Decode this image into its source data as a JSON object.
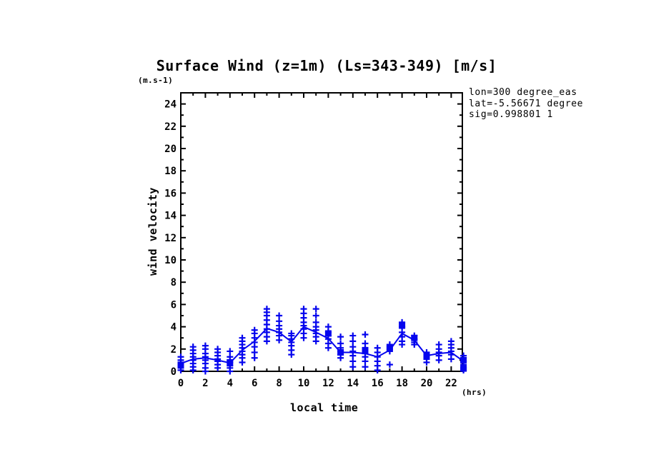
{
  "chart_data": {
    "type": "scatter",
    "title": "Surface Wind (z=1m) (Ls=343-349) [m/s]",
    "y_units": "(m.s-1)",
    "x_units": "(hrs)",
    "xlabel": "local time",
    "ylabel": "wind velocity",
    "annotations": [
      "lon=300 degree_eas",
      "lat=-5.56671 degree",
      "sig=0.998801 1"
    ],
    "xlim": [
      0,
      23.0
    ],
    "ylim": [
      0,
      25
    ],
    "xticks_major": [
      0,
      2,
      4,
      6,
      8,
      10,
      12,
      14,
      16,
      18,
      20,
      22
    ],
    "yticks_major": [
      0,
      2,
      4,
      6,
      8,
      10,
      12,
      14,
      16,
      18,
      20,
      22,
      24
    ],
    "minor_tick_step": 1,
    "grid": false,
    "legend": "none",
    "accent_color": "#0505ee",
    "axis_color": "#000000",
    "hours": [
      0,
      1,
      2,
      3,
      4,
      5,
      6,
      7,
      8,
      9,
      10,
      11,
      12,
      13,
      14,
      15,
      16,
      17,
      18,
      19,
      20,
      21,
      22,
      23
    ],
    "series": [
      {
        "name": "hourly mean wind (line)",
        "values": [
          0.7,
          1.1,
          1.2,
          1.0,
          0.75,
          1.9,
          2.7,
          3.85,
          3.5,
          2.65,
          4.0,
          3.5,
          2.95,
          1.7,
          1.7,
          1.6,
          1.3,
          1.9,
          3.4,
          2.8,
          1.4,
          1.6,
          1.7,
          0.9
        ]
      }
    ],
    "scatter_points_by_hour": [
      [
        0.1,
        0.3,
        0.5,
        0.8,
        1.0,
        1.3
      ],
      [
        0.1,
        0.4,
        0.7,
        1.0,
        1.3,
        1.6,
        1.9,
        2.2
      ],
      [
        0.0,
        0.3,
        0.7,
        1.0,
        1.3,
        1.6,
        2.0,
        2.3
      ],
      [
        0.3,
        0.6,
        0.9,
        1.1,
        1.4,
        1.7,
        2.0
      ],
      [
        0.0,
        0.3,
        0.5,
        0.8,
        1.0,
        1.3,
        1.8
      ],
      [
        0.8,
        1.2,
        1.5,
        1.8,
        2.1,
        2.4,
        2.7,
        3.0
      ],
      [
        1.2,
        1.7,
        2.2,
        2.6,
        3.0,
        3.4,
        3.7
      ],
      [
        2.7,
        3.1,
        3.5,
        3.8,
        4.2,
        4.6,
        5.0,
        5.3,
        5.6
      ],
      [
        2.8,
        3.2,
        3.5,
        3.8,
        4.1,
        4.5,
        5.0
      ],
      [
        1.5,
        1.9,
        2.3,
        2.6,
        2.9,
        3.2,
        3.4
      ],
      [
        3.0,
        3.4,
        3.8,
        4.1,
        4.4,
        4.8,
        5.2,
        5.6
      ],
      [
        2.7,
        3.1,
        3.4,
        3.7,
        4.0,
        4.4,
        5.0,
        5.6
      ],
      [
        2.1,
        2.5,
        2.9,
        3.2,
        3.5,
        4.0
      ],
      [
        1.2,
        1.5,
        1.8,
        2.1,
        2.5,
        3.1
      ],
      [
        0.4,
        0.9,
        1.4,
        1.8,
        2.2,
        2.7,
        3.2
      ],
      [
        0.4,
        0.9,
        1.3,
        1.6,
        2.0,
        2.5,
        3.3
      ],
      [
        0.1,
        0.5,
        0.9,
        1.3,
        1.7,
        2.1
      ],
      [
        0.6,
        1.8,
        2.0,
        2.2,
        2.4
      ],
      [
        2.4,
        2.7,
        3.1,
        3.5,
        4.0,
        4.4
      ],
      [
        2.4,
        2.6,
        2.9,
        3.2
      ],
      [
        0.8,
        1.1,
        1.4,
        1.7
      ],
      [
        1.0,
        1.4,
        1.7,
        2.0,
        2.4
      ],
      [
        1.1,
        1.5,
        1.8,
        2.1,
        2.4,
        2.7
      ],
      [
        0.1,
        0.3,
        0.6,
        0.9,
        1.2,
        1.4
      ]
    ],
    "square_markers": [
      [
        0,
        0.55
      ],
      [
        4,
        0.8
      ],
      [
        12,
        3.4
      ],
      [
        13,
        1.7
      ],
      [
        15,
        1.9
      ],
      [
        17,
        2.1
      ],
      [
        18,
        4.1
      ],
      [
        19,
        3.0
      ],
      [
        20,
        1.4
      ],
      [
        23,
        1.0
      ],
      [
        23,
        0.25
      ]
    ]
  }
}
